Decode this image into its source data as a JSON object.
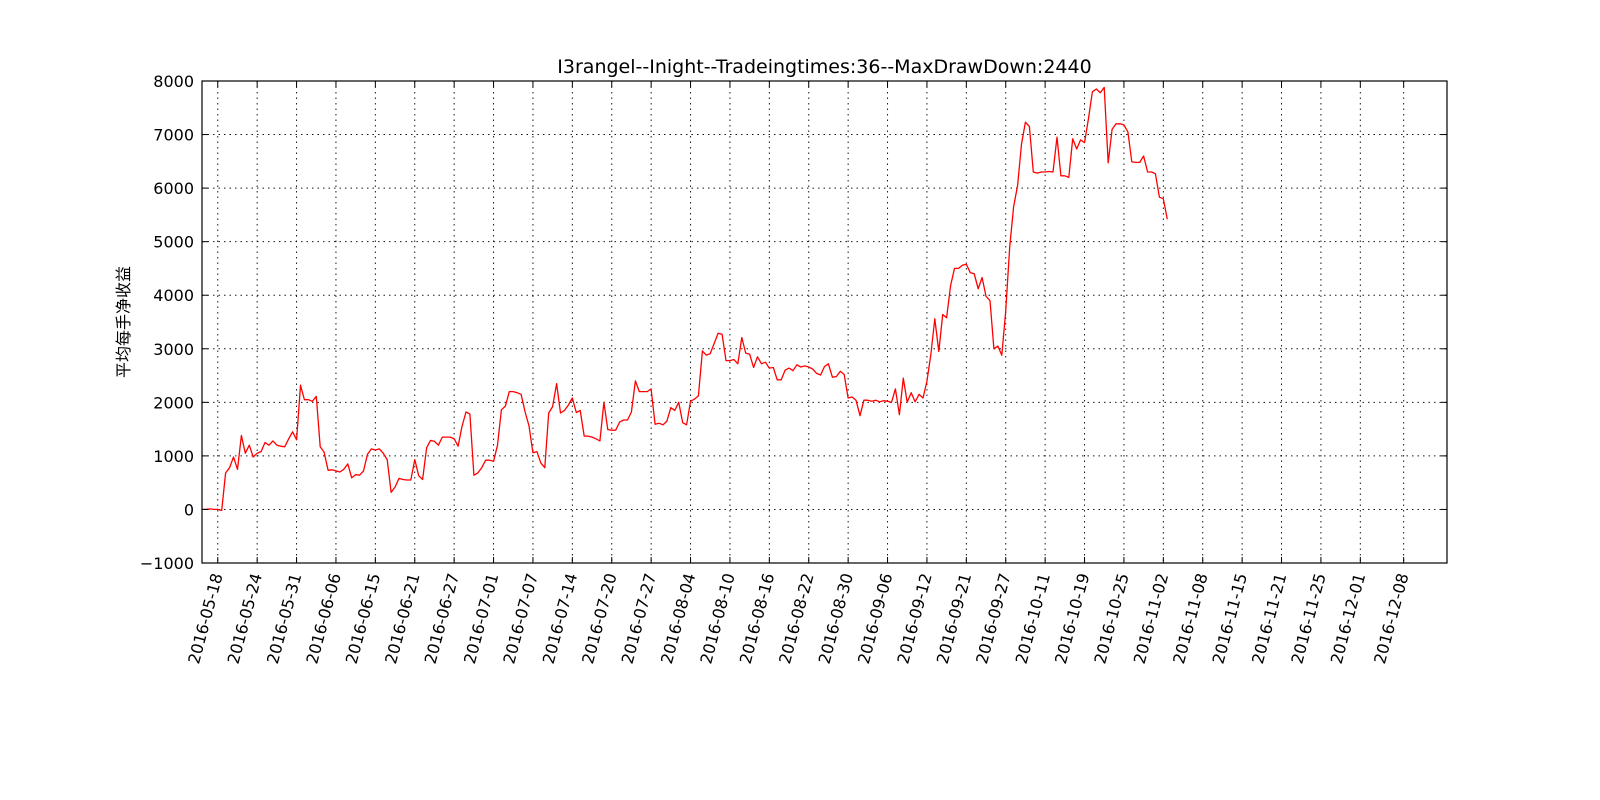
{
  "chart_data": {
    "type": "line",
    "title": "I3rangel--Inight--Tradeingtimes:36--MaxDrawDown:2440",
    "xlabel": "",
    "ylabel": "平均每手净收益",
    "ylim": [
      -1000,
      8000
    ],
    "yticks": [
      -1000,
      0,
      1000,
      2000,
      3000,
      4000,
      5000,
      6000,
      7000,
      8000
    ],
    "ytick_labels": [
      "−1000",
      "0",
      "1000",
      "2000",
      "3000",
      "4000",
      "5000",
      "6000",
      "7000",
      "8000"
    ],
    "grid": true,
    "line_color": "#ff0000",
    "xticks": [
      {
        "index": 4,
        "label": "2016-05-18"
      },
      {
        "index": 14,
        "label": "2016-05-24"
      },
      {
        "index": 24,
        "label": "2016-05-31"
      },
      {
        "index": 34,
        "label": "2016-06-06"
      },
      {
        "index": 44,
        "label": "2016-06-15"
      },
      {
        "index": 54,
        "label": "2016-06-21"
      },
      {
        "index": 64,
        "label": "2016-06-27"
      },
      {
        "index": 74,
        "label": "2016-07-01"
      },
      {
        "index": 84,
        "label": "2016-07-07"
      },
      {
        "index": 94,
        "label": "2016-07-14"
      },
      {
        "index": 104,
        "label": "2016-07-20"
      },
      {
        "index": 114,
        "label": "2016-07-27"
      },
      {
        "index": 124,
        "label": "2016-08-04"
      },
      {
        "index": 134,
        "label": "2016-08-10"
      },
      {
        "index": 144,
        "label": "2016-08-16"
      },
      {
        "index": 154,
        "label": "2016-08-22"
      },
      {
        "index": 164,
        "label": "2016-08-30"
      },
      {
        "index": 174,
        "label": "2016-09-06"
      },
      {
        "index": 184,
        "label": "2016-09-12"
      },
      {
        "index": 194,
        "label": "2016-09-21"
      },
      {
        "index": 204,
        "label": "2016-09-27"
      },
      {
        "index": 214,
        "label": "2016-10-11"
      },
      {
        "index": 224,
        "label": "2016-10-19"
      },
      {
        "index": 234,
        "label": "2016-10-25"
      },
      {
        "index": 244,
        "label": "2016-11-02"
      },
      {
        "index": 254,
        "label": "2016-11-08"
      },
      {
        "index": 264,
        "label": "2016-11-15"
      },
      {
        "index": 274,
        "label": "2016-11-21"
      },
      {
        "index": 284,
        "label": "2016-11-25"
      },
      {
        "index": 294,
        "label": "2016-12-01"
      },
      {
        "index": 305,
        "label": "2016-12-08"
      }
    ],
    "xlim": [
      0,
      316
    ],
    "series": [
      {
        "values": [
          0,
          0,
          10,
          0,
          0,
          -20,
          680,
          780,
          980,
          750,
          1380,
          1050,
          1200,
          980,
          1050,
          1080,
          1250,
          1200,
          1280,
          1200,
          1180,
          1170,
          1320,
          1450,
          1300,
          2320,
          2050,
          2050,
          2020,
          2110,
          1170,
          1070,
          730,
          740,
          720,
          700,
          750,
          850,
          590,
          650,
          640,
          720,
          1030,
          1130,
          1110,
          1130,
          1050,
          930,
          320,
          420,
          580,
          560,
          550,
          550,
          930,
          630,
          560,
          1150,
          1290,
          1270,
          1200,
          1350,
          1350,
          1350,
          1320,
          1180,
          1550,
          1820,
          1780,
          640,
          680,
          780,
          920,
          920,
          900,
          1200,
          1860,
          1930,
          2200,
          2200,
          2180,
          2150,
          1820,
          1560,
          1060,
          1080,
          870,
          780,
          1800,
          1920,
          2350,
          1800,
          1850,
          1950,
          2080,
          1810,
          1850,
          1370,
          1370,
          1350,
          1320,
          1280,
          2000,
          1490,
          1480,
          1480,
          1630,
          1670,
          1670,
          1820,
          2400,
          2200,
          2200,
          2200,
          2250,
          1590,
          1610,
          1580,
          1650,
          1900,
          1850,
          2000,
          1620,
          1580,
          2020,
          2060,
          2120,
          2960,
          2880,
          2910,
          3100,
          3290,
          3270,
          2780,
          2780,
          2800,
          2720,
          3210,
          2920,
          2900,
          2650,
          2850,
          2720,
          2750,
          2640,
          2650,
          2420,
          2420,
          2600,
          2640,
          2590,
          2700,
          2660,
          2680,
          2660,
          2620,
          2540,
          2510,
          2670,
          2720,
          2470,
          2480,
          2580,
          2520,
          2080,
          2100,
          2040,
          1750,
          2040,
          2040,
          2020,
          2040,
          2010,
          2030,
          2020,
          2000,
          2250,
          1770,
          2450,
          2000,
          2180,
          2010,
          2150,
          2080,
          2390,
          2900,
          3560,
          2950,
          3640,
          3580,
          4180,
          4500,
          4500,
          4560,
          4580,
          4420,
          4400,
          4120,
          4330,
          3980,
          3900,
          3000,
          3050,
          2880,
          3700,
          4900,
          5650,
          6050,
          6820,
          7230,
          7150,
          6300,
          6280,
          6300,
          6300,
          6310,
          6300,
          6950,
          6230,
          6230,
          6200,
          6920,
          6730,
          6900,
          6850,
          7300,
          7800,
          7850,
          7780,
          7880,
          6470,
          7100,
          7200,
          7200,
          7180,
          7050,
          6490,
          6480,
          6480,
          6600,
          6300,
          6300,
          6270,
          5830,
          5800,
          5420
        ]
      }
    ]
  }
}
